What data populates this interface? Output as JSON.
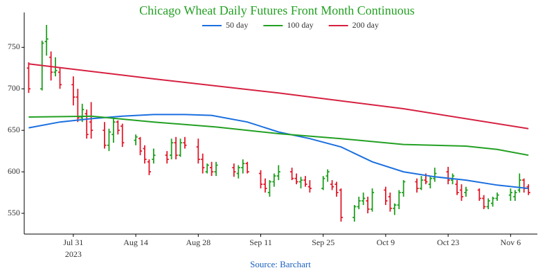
{
  "chart_data": {
    "type": "ohlc",
    "title": "Chicago Wheat Daily Futures Front Month Continuous",
    "source": "Source: Barchart",
    "legend_position": "top",
    "x": [
      "2023-07-21",
      "2023-07-24",
      "2023-07-25",
      "2023-07-26",
      "2023-07-27",
      "2023-07-28",
      "2023-07-31",
      "2023-08-01",
      "2023-08-02",
      "2023-08-03",
      "2023-08-04",
      "2023-08-07",
      "2023-08-08",
      "2023-08-09",
      "2023-08-10",
      "2023-08-11",
      "2023-08-14",
      "2023-08-15",
      "2023-08-16",
      "2023-08-17",
      "2023-08-18",
      "2023-08-21",
      "2023-08-22",
      "2023-08-23",
      "2023-08-24",
      "2023-08-25",
      "2023-08-28",
      "2023-08-29",
      "2023-08-30",
      "2023-08-31",
      "2023-09-01",
      "2023-09-05",
      "2023-09-06",
      "2023-09-07",
      "2023-09-08",
      "2023-09-11",
      "2023-09-12",
      "2023-09-13",
      "2023-09-14",
      "2023-09-15",
      "2023-09-18",
      "2023-09-19",
      "2023-09-20",
      "2023-09-21",
      "2023-09-22",
      "2023-09-25",
      "2023-09-26",
      "2023-09-27",
      "2023-09-28",
      "2023-09-29",
      "2023-10-02",
      "2023-10-03",
      "2023-10-04",
      "2023-10-05",
      "2023-10-06",
      "2023-10-09",
      "2023-10-10",
      "2023-10-11",
      "2023-10-12",
      "2023-10-13",
      "2023-10-16",
      "2023-10-17",
      "2023-10-18",
      "2023-10-19",
      "2023-10-20",
      "2023-10-23",
      "2023-10-24",
      "2023-10-25",
      "2023-10-26",
      "2023-10-27",
      "2023-10-30",
      "2023-10-31",
      "2023-11-01",
      "2023-11-02",
      "2023-11-03",
      "2023-11-06",
      "2023-11-07",
      "2023-11-08",
      "2023-11-09",
      "2023-11-10"
    ],
    "ohlc": {
      "open": [
        725,
        700,
        757,
        738,
        720,
        720,
        705,
        690,
        665,
        670,
        660,
        650,
        632,
        645,
        660,
        655,
        638,
        640,
        628,
        612,
        615,
        620,
        620,
        635,
        620,
        635,
        630,
        615,
        600,
        605,
        600,
        605,
        598,
        605,
        610,
        598,
        585,
        575,
        588,
        595,
        600,
        592,
        588,
        590,
        582,
        580,
        595,
        585,
        585,
        578,
        545,
        558,
        565,
        565,
        555,
        578,
        570,
        556,
        560,
        575,
        588,
        580,
        590,
        585,
        592,
        600,
        590,
        585,
        578,
        575,
        578,
        568,
        558,
        562,
        568,
        572,
        570,
        578,
        590,
        582
      ],
      "high": [
        732,
        758,
        777,
        745,
        738,
        725,
        715,
        700,
        682,
        675,
        684,
        660,
        652,
        665,
        662,
        658,
        645,
        642,
        632,
        615,
        628,
        625,
        640,
        642,
        640,
        642,
        640,
        622,
        610,
        612,
        612,
        610,
        608,
        615,
        612,
        602,
        592,
        590,
        598,
        608,
        605,
        598,
        594,
        595,
        590,
        595,
        603,
        590,
        588,
        580,
        560,
        570,
        575,
        570,
        580,
        582,
        575,
        562,
        578,
        590,
        592,
        595,
        598,
        595,
        605,
        606,
        598,
        590,
        585,
        582,
        580,
        572,
        568,
        570,
        575,
        580,
        578,
        598,
        592,
        585
      ],
      "low": [
        695,
        698,
        740,
        710,
        715,
        700,
        680,
        660,
        660,
        640,
        640,
        628,
        625,
        635,
        645,
        630,
        632,
        620,
        610,
        596,
        610,
        610,
        615,
        615,
        618,
        628,
        610,
        598,
        598,
        595,
        595,
        594,
        592,
        598,
        598,
        580,
        575,
        570,
        582,
        590,
        590,
        585,
        580,
        582,
        575,
        578,
        588,
        578,
        570,
        540,
        540,
        555,
        560,
        550,
        552,
        560,
        552,
        548,
        555,
        570,
        575,
        578,
        585,
        580,
        588,
        585,
        585,
        572,
        565,
        570,
        565,
        555,
        555,
        558,
        565,
        565,
        565,
        575,
        575,
        572
      ],
      "close": [
        700,
        755,
        760,
        720,
        722,
        705,
        690,
        665,
        675,
        645,
        650,
        632,
        648,
        660,
        650,
        635,
        642,
        625,
        615,
        600,
        620,
        615,
        635,
        620,
        635,
        632,
        615,
        605,
        608,
        600,
        608,
        600,
        605,
        610,
        600,
        585,
        580,
        588,
        595,
        600,
        592,
        588,
        590,
        585,
        580,
        592,
        600,
        582,
        575,
        545,
        558,
        565,
        568,
        555,
        575,
        565,
        556,
        560,
        575,
        588,
        580,
        590,
        588,
        592,
        598,
        590,
        595,
        575,
        570,
        578,
        568,
        558,
        565,
        568,
        572,
        575,
        575,
        590,
        580,
        575
      ]
    },
    "up_color": "#1e9e1e",
    "down_color": "#e0192a",
    "series": [
      {
        "name": "50 day",
        "color": "#1a6fdf",
        "x": [
          "2023-07-21",
          "2023-07-28",
          "2023-08-04",
          "2023-08-11",
          "2023-08-18",
          "2023-08-25",
          "2023-08-31",
          "2023-09-08",
          "2023-09-15",
          "2023-09-22",
          "2023-09-29",
          "2023-10-06",
          "2023-10-13",
          "2023-10-20",
          "2023-10-27",
          "2023-11-03",
          "2023-11-10"
        ],
        "values": [
          653,
          660,
          664,
          667,
          669,
          669,
          668,
          660,
          648,
          640,
          630,
          612,
          600,
          594,
          590,
          584,
          580
        ]
      },
      {
        "name": "100 day",
        "color": "#22a022",
        "x": [
          "2023-07-21",
          "2023-08-04",
          "2023-08-18",
          "2023-09-01",
          "2023-09-15",
          "2023-09-29",
          "2023-10-13",
          "2023-10-27",
          "2023-11-03",
          "2023-11-10"
        ],
        "values": [
          666,
          667,
          660,
          654,
          646,
          640,
          633,
          631,
          627,
          620
        ]
      },
      {
        "name": "200 day",
        "color": "#d62040",
        "x": [
          "2023-07-21",
          "2023-08-18",
          "2023-09-15",
          "2023-10-13",
          "2023-11-10"
        ],
        "values": [
          730,
          712,
          695,
          676,
          652
        ]
      }
    ],
    "xlim": [
      "2023-07-20",
      "2023-11-12"
    ],
    "xticks": [
      {
        "value": "2023-07-31",
        "label": "Jul 31"
      },
      {
        "value": "2023-08-14",
        "label": "Aug 14"
      },
      {
        "value": "2023-08-28",
        "label": "Aug 28"
      },
      {
        "value": "2023-09-11",
        "label": "Sep 11"
      },
      {
        "value": "2023-09-25",
        "label": "Sep 25"
      },
      {
        "value": "2023-10-09",
        "label": "Oct 9"
      },
      {
        "value": "2023-10-23",
        "label": "Oct 23"
      },
      {
        "value": "2023-11-06",
        "label": "Nov 6"
      }
    ],
    "x_year_label": "2023",
    "ylim": [
      525,
      792
    ],
    "yticks": [
      550,
      600,
      650,
      700,
      750
    ]
  }
}
